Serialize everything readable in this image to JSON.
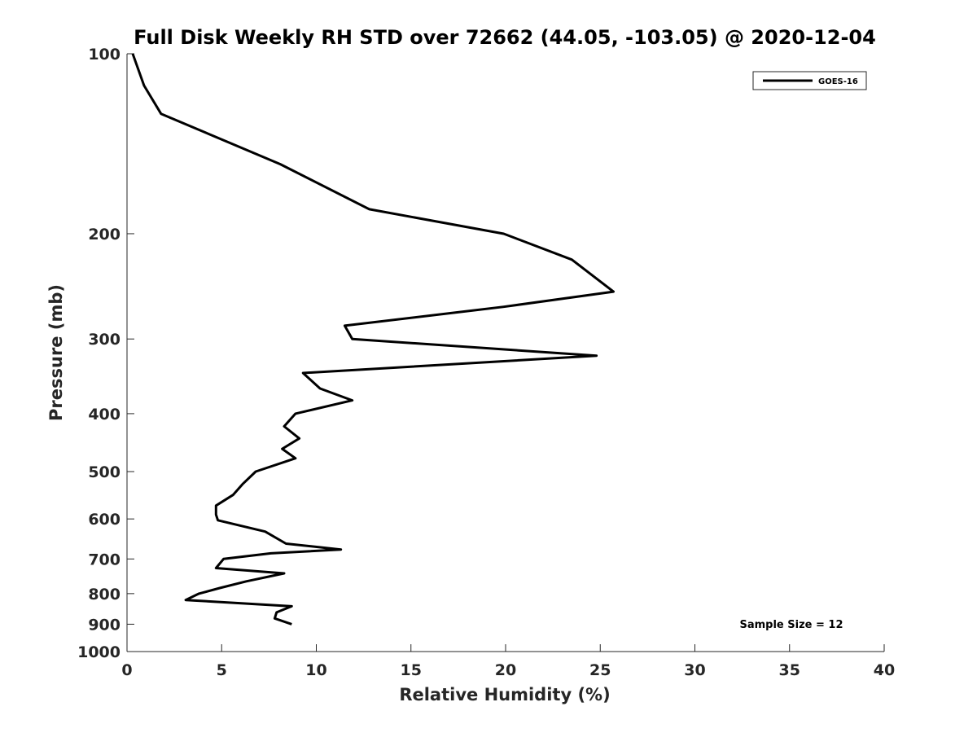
{
  "chart_data": {
    "type": "line",
    "title": "Full Disk Weekly RH STD over 72662 (44.05, -103.05) @ 2020-12-04",
    "xlabel": "Relative Humidity (%)",
    "ylabel": "Pressure (mb)",
    "xlim": [
      0,
      40
    ],
    "ylim": [
      100,
      1000
    ],
    "y_scale": "log",
    "y_direction": "reversed",
    "x_ticks": [
      0,
      5,
      10,
      15,
      20,
      25,
      30,
      35,
      40
    ],
    "y_ticks": [
      100,
      200,
      300,
      400,
      500,
      600,
      700,
      800,
      900,
      1000
    ],
    "grid": false,
    "legend_position": "top-right",
    "annotation": "Sample Size = 12",
    "series": [
      {
        "name": "GOES-16",
        "color": "#000000",
        "x": [
          0.3,
          0.9,
          1.8,
          8.1,
          12.8,
          19.9,
          23.5,
          25.7,
          19.9,
          11.5,
          11.9,
          24.8,
          9.3,
          10.2,
          11.9,
          8.9,
          8.3,
          9.1,
          8.2,
          8.9,
          6.8,
          6.1,
          5.6,
          4.7,
          4.7,
          4.8,
          7.3,
          8.4,
          11.3,
          7.6,
          5.1,
          4.7,
          8.3,
          6.3,
          4.9,
          3.8,
          3.1,
          8.7,
          7.9,
          7.8,
          8.7
        ],
        "y": [
          100,
          113,
          126,
          153,
          182,
          200,
          221,
          250,
          265,
          285,
          300,
          320,
          342,
          363,
          380,
          400,
          420,
          440,
          458,
          475,
          500,
          525,
          547,
          570,
          590,
          603,
          630,
          660,
          675,
          685,
          700,
          725,
          740,
          763,
          783,
          800,
          820,
          840,
          860,
          880,
          900
        ]
      }
    ]
  }
}
